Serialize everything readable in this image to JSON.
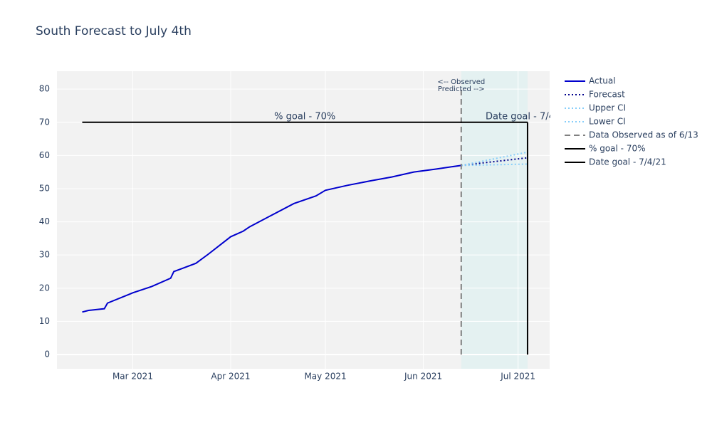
{
  "chart_data": {
    "type": "line",
    "title": "South Forecast to July 4th",
    "xlim": [
      "2021-02-05",
      "2021-07-11"
    ],
    "ylim": [
      -4.3,
      85.4
    ],
    "xticks": [
      {
        "value": "2021-03-01",
        "label": "Mar 2021"
      },
      {
        "value": "2021-04-01",
        "label": "Apr 2021"
      },
      {
        "value": "2021-05-01",
        "label": "May 2021"
      },
      {
        "value": "2021-06-01",
        "label": "Jun 2021"
      },
      {
        "value": "2021-07-01",
        "label": "Jul 2021"
      }
    ],
    "yticks": [
      0,
      10,
      20,
      30,
      40,
      50,
      60,
      70,
      80
    ],
    "grid": true,
    "shaded_region": {
      "x": [
        "2021-06-13",
        "2021-07-04"
      ],
      "color": "#e0f0f0"
    },
    "series": [
      {
        "name": "Actual",
        "color": "#0000cd",
        "dash": "solid",
        "x": [
          "2021-02-13",
          "2021-02-15",
          "2021-02-20",
          "2021-02-21",
          "2021-02-28",
          "2021-03-01",
          "2021-03-07",
          "2021-03-13",
          "2021-03-14",
          "2021-03-21",
          "2021-03-25",
          "2021-04-01",
          "2021-04-05",
          "2021-04-07",
          "2021-04-14",
          "2021-04-21",
          "2021-04-28",
          "2021-05-01",
          "2021-05-08",
          "2021-05-15",
          "2021-05-22",
          "2021-05-29",
          "2021-06-05",
          "2021-06-13"
        ],
        "values": [
          12.8,
          13.3,
          13.8,
          15.5,
          18.2,
          18.6,
          20.5,
          23.0,
          25.0,
          27.5,
          30.3,
          35.5,
          37.2,
          38.5,
          42.0,
          45.5,
          47.8,
          49.5,
          51.0,
          52.3,
          53.5,
          55.0,
          55.9,
          57.0
        ]
      },
      {
        "name": "Forecast",
        "color": "#00008b",
        "dash": "dot",
        "x": [
          "2021-06-13",
          "2021-07-04"
        ],
        "values": [
          57.0,
          59.3
        ]
      },
      {
        "name": "Upper CI",
        "color": "#87cefa",
        "dash": "dot",
        "x": [
          "2021-06-13",
          "2021-07-04"
        ],
        "values": [
          57.0,
          61.0
        ]
      },
      {
        "name": "Lower CI",
        "color": "#87cefa",
        "dash": "dot",
        "x": [
          "2021-06-13",
          "2021-07-04"
        ],
        "values": [
          57.0,
          57.4
        ]
      },
      {
        "name": "Data Observed as of 6/13",
        "color": "#808080",
        "dash": "dash",
        "x": [
          "2021-06-13",
          "2021-06-13"
        ],
        "values": [
          0,
          80
        ]
      },
      {
        "name": "% goal - 70%",
        "color": "#000000",
        "dash": "solid",
        "x": [
          "2021-02-13",
          "2021-07-04"
        ],
        "values": [
          70,
          70
        ]
      },
      {
        "name": "Date goal - 7/4/21",
        "color": "#000000",
        "dash": "solid",
        "x": [
          "2021-07-04",
          "2021-07-04"
        ],
        "values": [
          0,
          70
        ]
      }
    ],
    "annotations": {
      "observed": "<-- Observed",
      "predicted": "Predicted -->",
      "pct_goal": "% goal - 70%",
      "date_goal": "Date goal - 7/4/21"
    }
  }
}
